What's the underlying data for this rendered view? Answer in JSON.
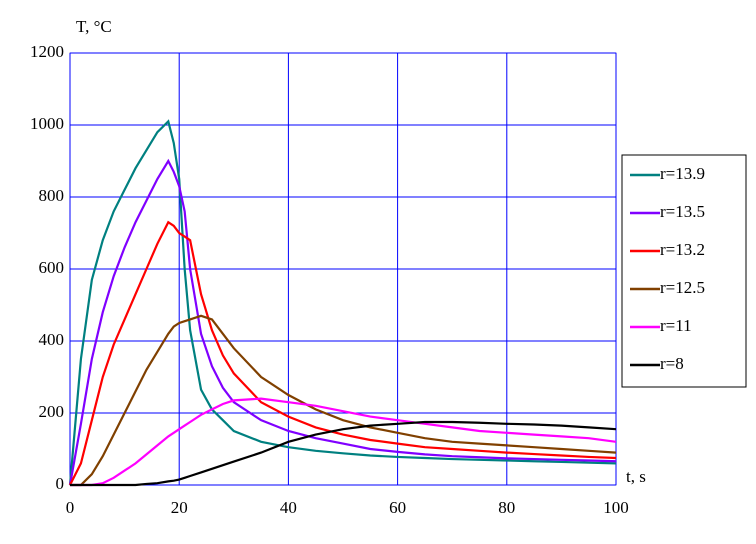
{
  "chart_data": {
    "type": "line",
    "y_label": "T, °C",
    "x_label": "t, s",
    "x": [
      0,
      2,
      4,
      6,
      8,
      10,
      12,
      14,
      16,
      18,
      19,
      20,
      21,
      22,
      24,
      26,
      28,
      30,
      35,
      40,
      45,
      50,
      55,
      60,
      65,
      70,
      75,
      80,
      85,
      90,
      95,
      100
    ],
    "series": [
      {
        "name": "r=13.9",
        "color": "#008080",
        "values": [
          0,
          350,
          570,
          680,
          760,
          820,
          880,
          930,
          980,
          1010,
          950,
          850,
          600,
          430,
          265,
          210,
          180,
          150,
          120,
          105,
          95,
          88,
          82,
          78,
          75,
          72,
          70,
          68,
          66,
          64,
          62,
          60
        ]
      },
      {
        "name": "r=13.5",
        "color": "#8000ff",
        "values": [
          0,
          170,
          350,
          480,
          580,
          660,
          730,
          790,
          850,
          900,
          870,
          830,
          760,
          600,
          420,
          330,
          270,
          230,
          180,
          150,
          130,
          115,
          100,
          92,
          85,
          80,
          77,
          74,
          72,
          70,
          68,
          66
        ]
      },
      {
        "name": "r=13.2",
        "color": "#ff0000",
        "values": [
          0,
          60,
          180,
          300,
          390,
          460,
          530,
          600,
          670,
          730,
          720,
          700,
          690,
          680,
          530,
          430,
          360,
          310,
          230,
          190,
          160,
          140,
          125,
          115,
          105,
          100,
          95,
          90,
          86,
          82,
          78,
          75
        ]
      },
      {
        "name": "r=12.5",
        "color": "#804000",
        "values": [
          0,
          0,
          30,
          80,
          140,
          200,
          260,
          320,
          370,
          420,
          440,
          450,
          455,
          460,
          470,
          460,
          420,
          380,
          300,
          250,
          210,
          180,
          160,
          145,
          130,
          120,
          115,
          110,
          105,
          100,
          95,
          90
        ]
      },
      {
        "name": "r=11",
        "color": "#ff00ff",
        "values": [
          0,
          0,
          0,
          5,
          20,
          40,
          60,
          85,
          110,
          135,
          145,
          155,
          165,
          175,
          195,
          210,
          225,
          235,
          240,
          230,
          220,
          205,
          190,
          180,
          170,
          160,
          150,
          145,
          140,
          135,
          130,
          120
        ]
      },
      {
        "name": "r=8",
        "color": "#000000",
        "values": [
          0,
          0,
          0,
          0,
          0,
          0,
          0,
          3,
          5,
          10,
          12,
          15,
          20,
          25,
          35,
          45,
          55,
          65,
          90,
          120,
          140,
          155,
          165,
          170,
          175,
          175,
          173,
          170,
          168,
          165,
          160,
          155
        ]
      }
    ],
    "xlim": [
      0,
      100
    ],
    "ylim": [
      0,
      1200
    ],
    "xticks": [
      0,
      20,
      40,
      60,
      80,
      100
    ],
    "yticks": [
      0,
      200,
      400,
      600,
      800,
      1000,
      1200
    ],
    "grid": true,
    "grid_color": "#0000ff",
    "legend": "right"
  }
}
